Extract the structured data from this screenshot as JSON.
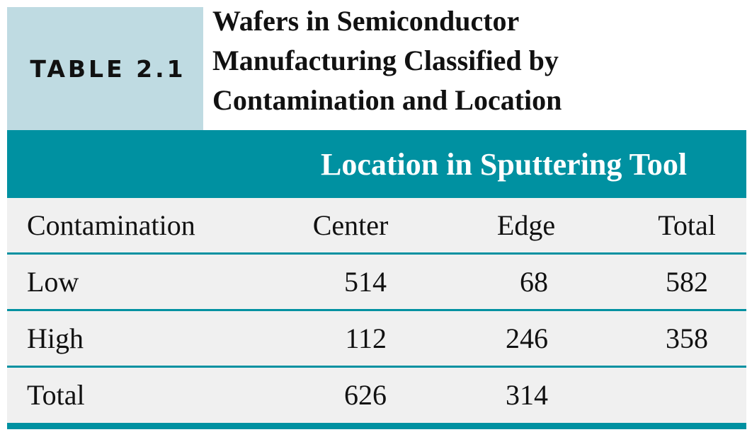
{
  "table_label": "TABLE 2.1",
  "title_lines": [
    "Wafers in Semiconductor",
    "Manufacturing Classified by",
    "Contamination and Location"
  ],
  "spanning_header": "Location in Sputtering Tool",
  "columns": [
    "Contamination",
    "Center",
    "Edge",
    "Total"
  ],
  "rows": [
    {
      "label": "Low",
      "center": "514",
      "edge": "68",
      "total": "582"
    },
    {
      "label": "High",
      "center": "112",
      "edge": "246",
      "total": "358"
    },
    {
      "label": "Total",
      "center": "626",
      "edge": "314",
      "total": ""
    }
  ],
  "colors": {
    "accent": "#0091a1",
    "label_background": "#bfdbe2",
    "table_background": "#f0f0f0"
  }
}
